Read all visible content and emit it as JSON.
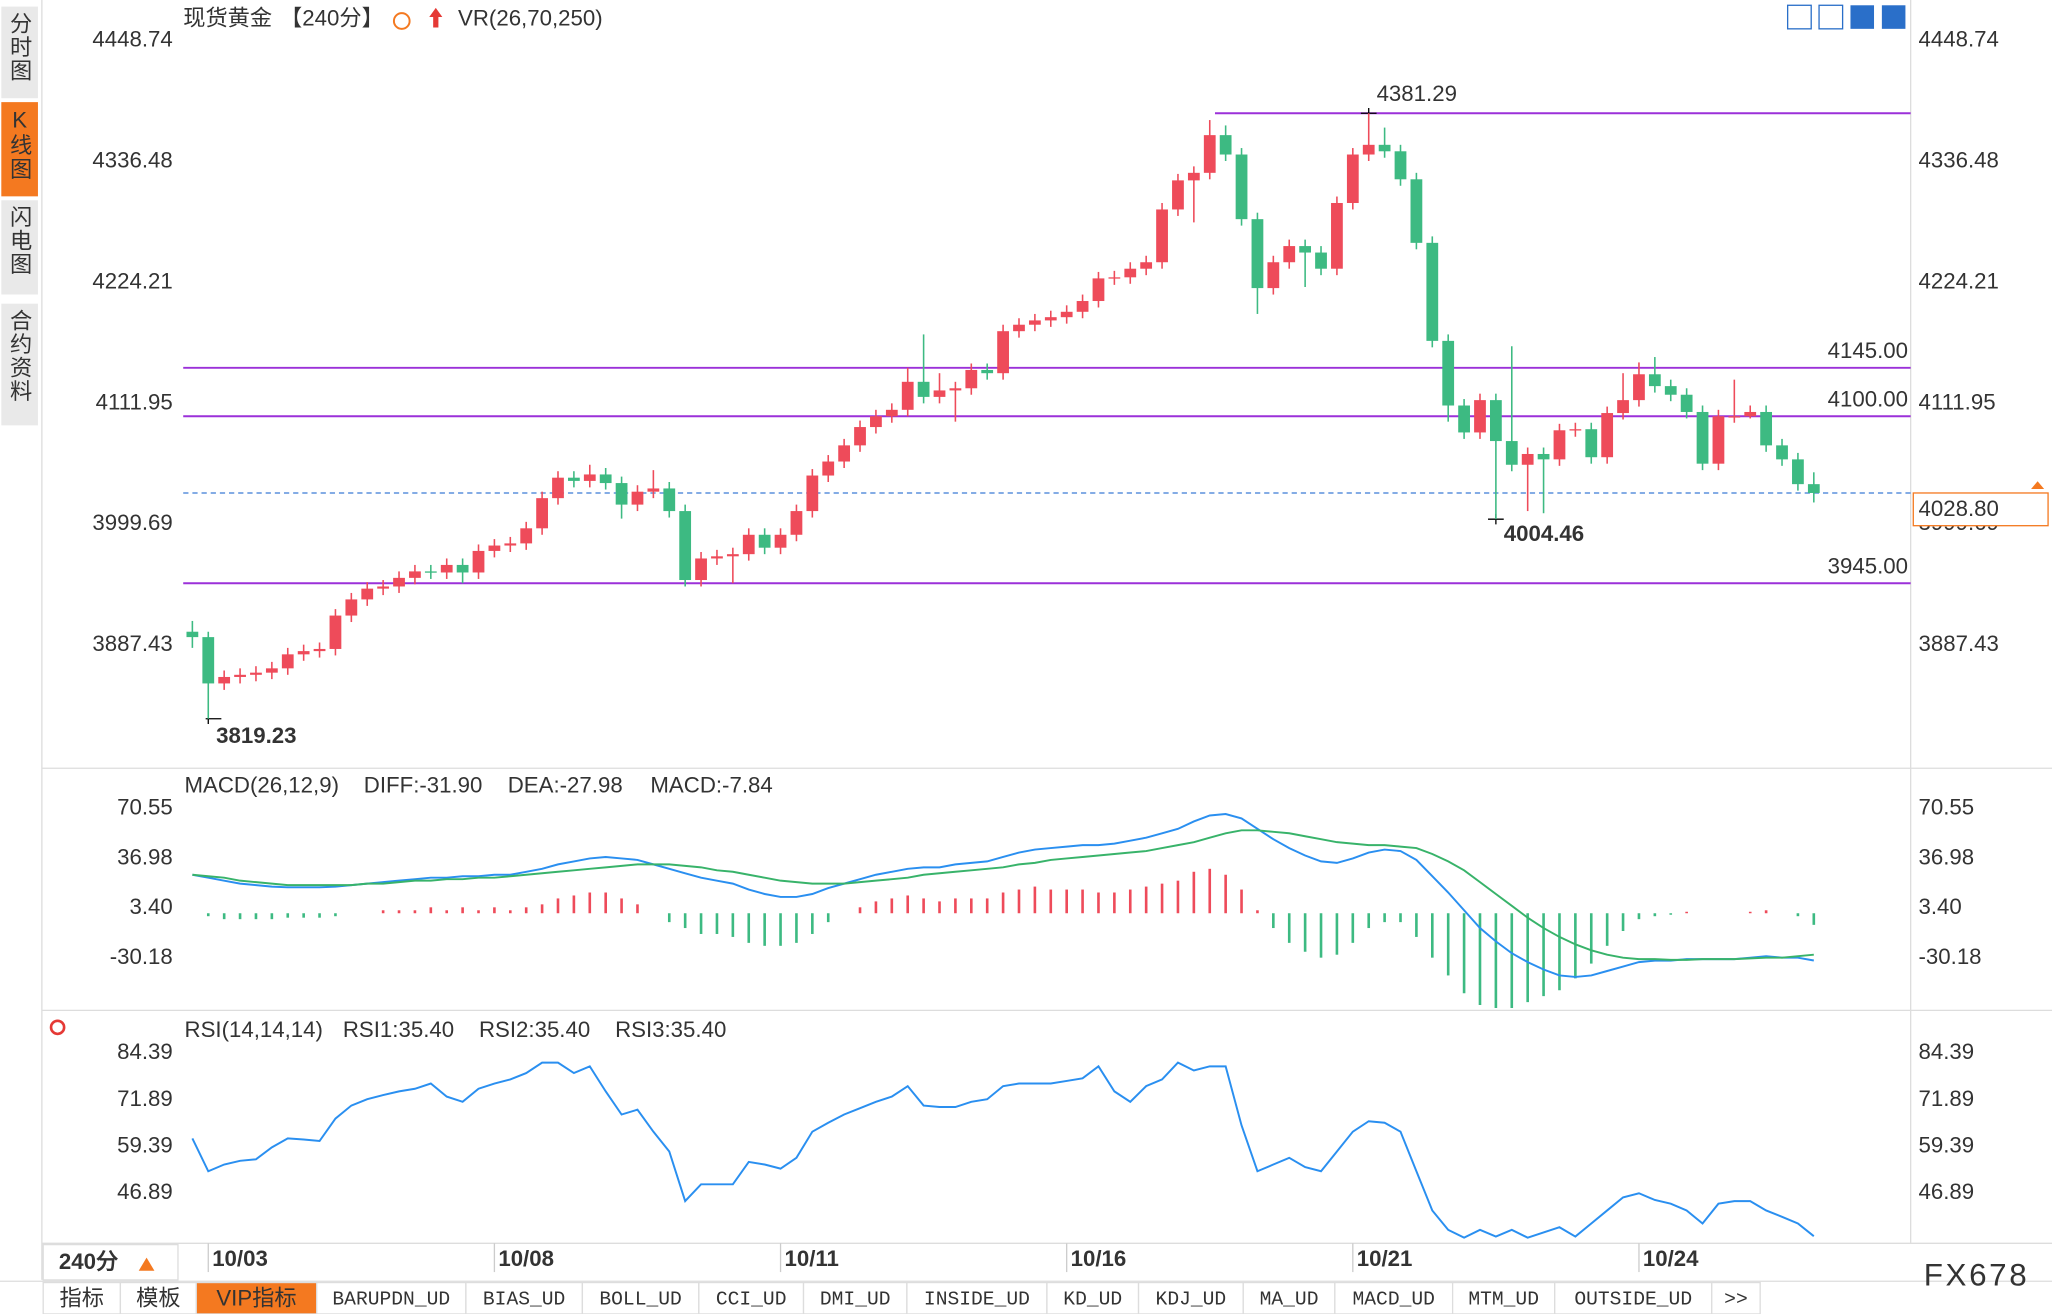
{
  "sidebar": [
    "分时图",
    "K线图",
    "闪电图",
    "合约资料"
  ],
  "header": {
    "symbol": "现货黄金",
    "period": "【240分】",
    "indicator": "VR(26,70,250)"
  },
  "chart_data": [
    {
      "type": "candlestick",
      "up_color": "#ee4b5a",
      "down_color": "#3dba82",
      "x": [
        null,
        "10/03",
        null,
        null,
        null,
        null,
        null,
        null,
        null,
        null,
        null,
        null,
        null,
        null,
        null,
        null,
        null,
        null,
        null,
        "10/08",
        null,
        null,
        null,
        null,
        null,
        null,
        null,
        null,
        null,
        null,
        null,
        null,
        null,
        null,
        null,
        null,
        null,
        "10/11",
        null,
        null,
        null,
        null,
        null,
        null,
        null,
        null,
        null,
        null,
        null,
        null,
        null,
        null,
        null,
        null,
        null,
        "10/16",
        null,
        null,
        null,
        null,
        null,
        null,
        null,
        null,
        null,
        null,
        null,
        null,
        null,
        null,
        null,
        null,
        null,
        "10/21",
        null,
        null,
        null,
        null,
        null,
        null,
        null,
        null,
        null,
        null,
        null,
        null,
        null,
        null,
        null,
        null,
        null,
        "10/24",
        null,
        null,
        null,
        null,
        null,
        null,
        null,
        null,
        null,
        null,
        null
      ],
      "candles": {
        "open": [
          3900,
          3895,
          3852,
          3858,
          3860,
          3862,
          3866,
          3879,
          3882,
          3884,
          3915,
          3930,
          3940,
          3942,
          3950,
          3956,
          3955,
          3962,
          3955,
          3975,
          3980,
          3982,
          3996,
          4024,
          4043,
          4040,
          4046,
          4038,
          4018,
          4030,
          4033,
          4012,
          3948,
          3968,
          3970,
          3972,
          3990,
          3978,
          3990,
          4012,
          4045,
          4058,
          4073,
          4090,
          4100,
          4106,
          4132,
          4118,
          4124,
          4126,
          4143,
          4140,
          4179,
          4185,
          4189,
          4192,
          4197,
          4207,
          4228,
          4229,
          4237,
          4243,
          4292,
          4319,
          4326,
          4361,
          4343,
          4283,
          4219,
          4243,
          4258,
          4252,
          4237,
          4298,
          4343,
          4352,
          4346,
          4320,
          4261,
          4170,
          4110,
          4085,
          4115,
          4077,
          4055,
          4065,
          4060,
          4087,
          4088,
          4062,
          4103,
          4115,
          4139,
          4128,
          4120,
          4104,
          4056,
          4100,
          4100,
          4104,
          4073,
          4060,
          4037
        ],
        "high": [
          3910,
          3900,
          3864,
          3866,
          3868,
          3872,
          3885,
          3888,
          3890,
          3921,
          3936,
          3946,
          3948,
          3956,
          3962,
          3962,
          3968,
          3968,
          3981,
          3986,
          3988,
          4002,
          4030,
          4049,
          4049,
          4055,
          4052,
          4044,
          4036,
          4050,
          4039,
          4018,
          3974,
          3976,
          3978,
          3996,
          3996,
          3996,
          4018,
          4051,
          4064,
          4079,
          4096,
          4106,
          4112,
          4145,
          4176,
          4140,
          4132,
          4149,
          4149,
          4185,
          4191,
          4195,
          4198,
          4203,
          4213,
          4234,
          4235,
          4243,
          4249,
          4298,
          4325,
          4332,
          4375,
          4370,
          4349,
          4289,
          4249,
          4264,
          4264,
          4258,
          4304,
          4349,
          4381.29,
          4368,
          4352,
          4326,
          4267,
          4176,
          4116,
          4121,
          4121,
          4165,
          4071,
          4071,
          4093,
          4094,
          4094,
          4109,
          4140,
          4150,
          4155,
          4134,
          4126,
          4110,
          4106,
          4134,
          4110,
          4110,
          4079,
          4066,
          4048
        ],
        "low": [
          3885,
          3819.23,
          3846,
          3852,
          3854,
          3856,
          3860,
          3873,
          3876,
          3878,
          3909,
          3924,
          3934,
          3936,
          3944,
          3949,
          3949,
          3945,
          3949,
          3969,
          3974,
          3976,
          3990,
          4018,
          4034,
          4034,
          4032,
          4005,
          4012,
          4024,
          4006,
          3942,
          3942,
          3962,
          3945,
          3966,
          3972,
          3972,
          3984,
          4006,
          4039,
          4052,
          4067,
          4084,
          4094,
          4100,
          4112,
          4112,
          4095,
          4120,
          4134,
          4134,
          4173,
          4179,
          4183,
          4186,
          4191,
          4201,
          4222,
          4223,
          4231,
          4237,
          4286,
          4280,
          4320,
          4337,
          4277,
          4195,
          4213,
          4237,
          4220,
          4231,
          4231,
          4292,
          4337,
          4340,
          4314,
          4255,
          4164,
          4095,
          4079,
          4079,
          4004.46,
          4049,
          4012,
          4010,
          4054,
          4081,
          4056,
          4056,
          4097,
          4109,
          4122,
          4114,
          4098,
          4050,
          4050,
          4094,
          4098,
          4067,
          4054,
          4031,
          4020
        ],
        "close": [
          3895,
          3852,
          3858,
          3860,
          3862,
          3866,
          3879,
          3882,
          3884,
          3915,
          3930,
          3940,
          3942,
          3950,
          3956,
          3955,
          3962,
          3955,
          3975,
          3980,
          3982,
          3996,
          4024,
          4043,
          4040,
          4046,
          4038,
          4018,
          4030,
          4033,
          4012,
          3948,
          3968,
          3970,
          3972,
          3990,
          3978,
          3990,
          4012,
          4045,
          4058,
          4073,
          4090,
          4100,
          4106,
          4132,
          4118,
          4124,
          4126,
          4143,
          4140,
          4179,
          4185,
          4189,
          4192,
          4197,
          4207,
          4228,
          4229,
          4237,
          4243,
          4292,
          4319,
          4326,
          4361,
          4343,
          4283,
          4219,
          4243,
          4258,
          4252,
          4237,
          4298,
          4343,
          4352,
          4346,
          4320,
          4261,
          4170,
          4110,
          4085,
          4115,
          4077,
          4055,
          4065,
          4060,
          4087,
          4088,
          4062,
          4103,
          4115,
          4139,
          4128,
          4120,
          4104,
          4056,
          4100,
          4100,
          4104,
          4073,
          4060,
          4037,
          4028.8
        ]
      },
      "ylim": [
        3775.7,
        4486.4
      ],
      "yticks": [
        4448.74,
        4336.48,
        4224.21,
        4111.95,
        3999.69,
        3887.43
      ],
      "levels": [
        {
          "value": 4145,
          "label": "4145.00"
        },
        {
          "value": 4100,
          "label": "4100.00"
        },
        {
          "value": 3945,
          "label": "3945.00"
        }
      ],
      "level_color": "#9b30d9",
      "last_price": {
        "value": 4028.8,
        "label": "4028.80"
      },
      "last_color": "#f47920"
    },
    {
      "type": "macd",
      "title": "MACD(26,12,9)",
      "up_color": "#ee4b5a",
      "down_color": "#3dba82",
      "ylim": [
        -63.8,
        93.5
      ],
      "yticks": [
        70.55,
        36.98,
        {
          "value": 3.4,
          "label": "3.40"
        },
        -30.18
      ],
      "series": [
        {
          "name": "DIFF:-31.90",
          "color": "#2a8ff0",
          "values": [
            26,
            24,
            22,
            20,
            19,
            18,
            17.5,
            17.5,
            17.5,
            18,
            19,
            20,
            21,
            22,
            23,
            24,
            24,
            25,
            25,
            26,
            26,
            28,
            30,
            33,
            35,
            37,
            38,
            37,
            36,
            33,
            30,
            27,
            24,
            22,
            20,
            16,
            13,
            11,
            11,
            13,
            17,
            20,
            23,
            26,
            28,
            30,
            31,
            31,
            33,
            34,
            35,
            38,
            41,
            43,
            44,
            45,
            46,
            46,
            47,
            49,
            51,
            54,
            57,
            62,
            66,
            67,
            64,
            57,
            50,
            44,
            39,
            35,
            34,
            37,
            41,
            43,
            42,
            36,
            25,
            14,
            2,
            -10,
            -19,
            -27,
            -33,
            -38,
            -42,
            -43,
            -42,
            -39,
            -36,
            -33,
            -32,
            -32,
            -31,
            -31,
            -31,
            -31,
            -30,
            -29,
            -30,
            -30,
            -31.9
          ]
        },
        {
          "name": "DEA:-27.98",
          "color": "#38b36a",
          "values": [
            26,
            25,
            24,
            22,
            21,
            20,
            19,
            19,
            19,
            19,
            19,
            20,
            20,
            21,
            22,
            22,
            23,
            23,
            24,
            24,
            25,
            26,
            27,
            28,
            29,
            30,
            31,
            32,
            33,
            33,
            33,
            32,
            31,
            29,
            28,
            26,
            24,
            22,
            21,
            20,
            20,
            20,
            21,
            22,
            23,
            24,
            26,
            27,
            28,
            29,
            30,
            31,
            33,
            34,
            36,
            37,
            38,
            39,
            40,
            41,
            42,
            44,
            46,
            48,
            51,
            54,
            56,
            56,
            55,
            54,
            52,
            50,
            48,
            47,
            46,
            46,
            45,
            44,
            40,
            35,
            29,
            21,
            13,
            5,
            -3,
            -10,
            -16,
            -21,
            -25,
            -28,
            -30,
            -31,
            -31,
            -31.5,
            -31.5,
            -31,
            -31,
            -31,
            -30.5,
            -30,
            -30,
            -29,
            -27.98
          ]
        },
        {
          "name": "MACD:-7.84",
          "color": "#2a8ff0",
          "type": "bar",
          "values": [
            0,
            -2,
            -4,
            -4,
            -4,
            -4,
            -3,
            -3,
            -3,
            -2,
            0,
            0,
            2,
            2,
            2,
            4,
            2,
            4,
            2,
            4,
            2,
            4,
            6,
            10,
            12,
            14,
            14,
            10,
            6,
            0,
            -6,
            -10,
            -14,
            -14,
            -16,
            -20,
            -22,
            -22,
            -20,
            -14,
            -6,
            0,
            4,
            8,
            10,
            12,
            10,
            8,
            10,
            10,
            10,
            14,
            16,
            18,
            16,
            16,
            16,
            14,
            14,
            16,
            18,
            20,
            22,
            28,
            30,
            26,
            16,
            2,
            -10,
            -20,
            -26,
            -30,
            -28,
            -20,
            -10,
            -6,
            -6,
            -16,
            -30,
            -42,
            -54,
            -62,
            -64,
            -64,
            -60,
            -56,
            -52,
            -44,
            -34,
            -22,
            -12,
            -4,
            -2,
            -1,
            1,
            0,
            0,
            0,
            1,
            2,
            0,
            -2,
            -7.84
          ]
        }
      ]
    },
    {
      "type": "line",
      "title": "RSI(14,14,14)",
      "color": "#2a8ff0",
      "legend": [
        {
          "text": "RSI1:35.40",
          "color": "#2a8ff0"
        },
        {
          "text": "RSI2:35.40",
          "color": "#38b36a"
        },
        {
          "text": "RSI3:35.40",
          "color": "#2a8ff0"
        }
      ],
      "ylim": [
        33.5,
        93.1
      ],
      "yticks": [
        84.39,
        71.89,
        59.39,
        46.89
      ],
      "values": [
        61.6,
        52.8,
        54.6,
        55.6,
        56.0,
        59.2,
        61.6,
        61.3,
        60.9,
        66.9,
        70.4,
        72.1,
        73.2,
        74.2,
        74.9,
        76.3,
        72.8,
        71.4,
        74.9,
        76.3,
        77.4,
        79.1,
        81.9,
        81.9,
        79.1,
        80.9,
        74.2,
        68.0,
        69.3,
        63.4,
        58.1,
        44.8,
        49.3,
        49.3,
        49.3,
        55.3,
        54.6,
        53.5,
        56.4,
        63.4,
        65.8,
        68.0,
        69.7,
        71.4,
        72.8,
        75.6,
        70.4,
        70.0,
        70.0,
        71.4,
        72.1,
        75.6,
        76.3,
        76.3,
        76.3,
        77.0,
        77.7,
        80.9,
        74.2,
        71.4,
        75.6,
        77.4,
        81.9,
        79.8,
        80.9,
        80.9,
        65.1,
        52.8,
        54.6,
        56.4,
        53.9,
        52.8,
        58.1,
        63.4,
        66.2,
        65.8,
        63.4,
        52.8,
        42.3,
        37.1,
        35.0,
        37.1,
        35.3,
        37.1,
        35.0,
        36.4,
        37.8,
        35.3,
        38.8,
        42.3,
        45.8,
        46.9,
        45.1,
        44.1,
        42.3,
        38.8,
        44.1,
        44.8,
        44.8,
        42.3,
        40.6,
        38.8,
        35.4
      ]
    }
  ],
  "footer": {
    "period_button": "240分",
    "tabs": [
      "指标",
      "模板",
      "VIP指标",
      "BARUPDN_UD",
      "BIAS_UD",
      "BOLL_UD",
      "CCI_UD",
      "DMI_UD",
      "INSIDE_UD",
      "KD_UD",
      "KDJ_UD",
      "MA_UD",
      "MACD_UD",
      "MTM_UD",
      "OUTSIDE_UD",
      ">>"
    ],
    "watermark": "FX678"
  }
}
